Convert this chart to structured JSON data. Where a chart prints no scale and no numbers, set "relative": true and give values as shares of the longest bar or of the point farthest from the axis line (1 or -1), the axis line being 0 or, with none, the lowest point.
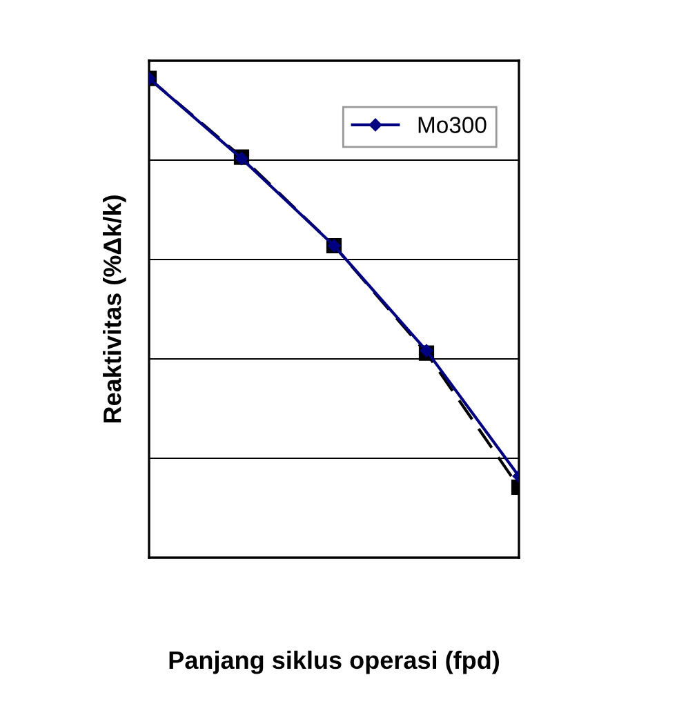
{
  "chart_data": {
    "type": "line",
    "relative": true,
    "xlabel": "Panjang siklus operasi (fpd)",
    "ylabel": "Reaktivitas (%Δk/k)",
    "categories": [
      null,
      null,
      null,
      null,
      null
    ],
    "series": [
      {
        "name": "Mo300",
        "color": "#000080",
        "marker": "diamond",
        "line_style": "solid",
        "values": [
          1,
          0.833,
          0.651,
          0.432,
          0.17
        ]
      },
      {
        "color": "#000000",
        "marker": "square",
        "line_style": "dashed",
        "values": [
          1,
          0.836,
          0.651,
          0.427,
          0.147
        ]
      }
    ],
    "grid": "y",
    "legend": "top right"
  }
}
